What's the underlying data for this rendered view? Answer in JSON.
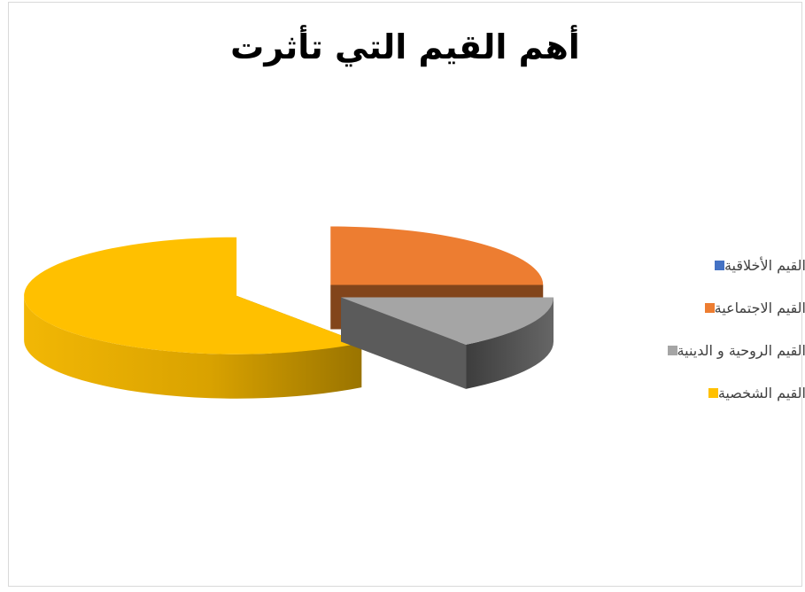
{
  "chart_data": {
    "type": "pie",
    "title": "أهم القيم التي تأثرت",
    "categories": [
      "القيم الأخلاقية",
      "القيم الاجتماعية",
      "القيم الروحية و الدينية",
      "القيم الشخصية"
    ],
    "values": [
      0,
      25,
      15,
      60
    ],
    "colors": [
      "#4472c4",
      "#ed7d31",
      "#a5a5a5",
      "#ffc000"
    ],
    "exploded": true,
    "three_d": true,
    "legend_position": "right"
  }
}
